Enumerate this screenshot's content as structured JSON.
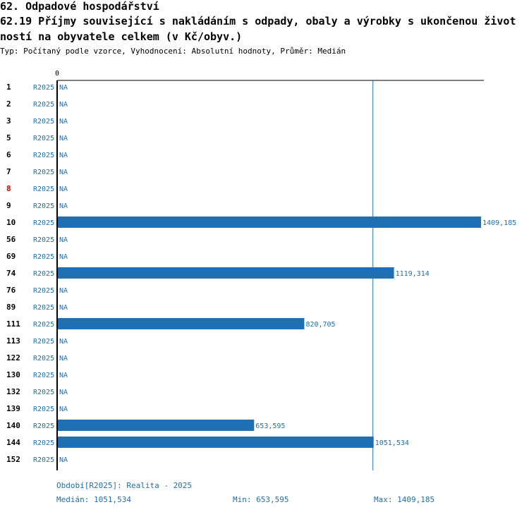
{
  "header": {
    "title": "62. Odpadové hospodářství",
    "subtitle_line1": "62.19 Příjmy související s nakládáním s odpady, obaly a výrobky s ukončenou život",
    "subtitle_line2": "ností  na obyvatele celkem (v Kč/obyv.)",
    "meta": "Typ: Počítaný podle vzorce, Vyhodnocení: Absolutní hodnoty, Průměr: Medián"
  },
  "chart_data": {
    "type": "bar",
    "orientation": "horizontal",
    "axis_zero_label": "0",
    "xlim": [
      0,
      1409.185
    ],
    "median": 1051.534,
    "period": "R2025",
    "na_label": "NA",
    "rows": [
      {
        "id": "1",
        "period": "R2025",
        "value": null,
        "highlight": false
      },
      {
        "id": "2",
        "period": "R2025",
        "value": null,
        "highlight": false
      },
      {
        "id": "3",
        "period": "R2025",
        "value": null,
        "highlight": false
      },
      {
        "id": "5",
        "period": "R2025",
        "value": null,
        "highlight": false
      },
      {
        "id": "6",
        "period": "R2025",
        "value": null,
        "highlight": false
      },
      {
        "id": "7",
        "period": "R2025",
        "value": null,
        "highlight": false
      },
      {
        "id": "8",
        "period": "R2025",
        "value": null,
        "highlight": true
      },
      {
        "id": "9",
        "period": "R2025",
        "value": null,
        "highlight": false
      },
      {
        "id": "10",
        "period": "R2025",
        "value": 1409.185,
        "label": "1409,185",
        "highlight": false
      },
      {
        "id": "56",
        "period": "R2025",
        "value": null,
        "highlight": false
      },
      {
        "id": "69",
        "period": "R2025",
        "value": null,
        "highlight": false
      },
      {
        "id": "74",
        "period": "R2025",
        "value": 1119.314,
        "label": "1119,314",
        "highlight": false
      },
      {
        "id": "76",
        "period": "R2025",
        "value": null,
        "highlight": false
      },
      {
        "id": "89",
        "period": "R2025",
        "value": null,
        "highlight": false
      },
      {
        "id": "111",
        "period": "R2025",
        "value": 820.705,
        "label": "820,705",
        "highlight": false
      },
      {
        "id": "113",
        "period": "R2025",
        "value": null,
        "highlight": false
      },
      {
        "id": "122",
        "period": "R2025",
        "value": null,
        "highlight": false
      },
      {
        "id": "130",
        "period": "R2025",
        "value": null,
        "highlight": false
      },
      {
        "id": "132",
        "period": "R2025",
        "value": null,
        "highlight": false
      },
      {
        "id": "139",
        "period": "R2025",
        "value": null,
        "highlight": false
      },
      {
        "id": "140",
        "period": "R2025",
        "value": 653.595,
        "label": "653,595",
        "highlight": false
      },
      {
        "id": "144",
        "period": "R2025",
        "value": 1051.534,
        "label": "1051,534",
        "highlight": false
      },
      {
        "id": "152",
        "period": "R2025",
        "value": null,
        "highlight": false
      }
    ]
  },
  "footer": {
    "period_note": "Období[R2025]: Realita - 2025",
    "median": "Medián: 1051,534",
    "min": "Min: 653,595",
    "max": "Max: 1409,185"
  },
  "colors": {
    "bar": "#1f6fb5",
    "text_blue": "#1f6fb5",
    "highlight": "#d40000",
    "axis": "#000000"
  }
}
